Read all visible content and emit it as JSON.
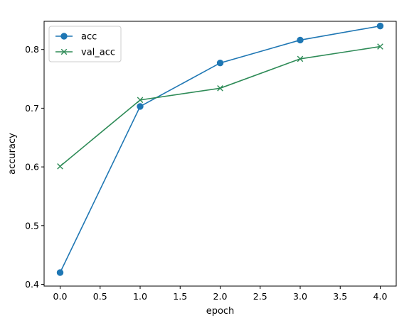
{
  "chart_data": {
    "type": "line",
    "xlabel": "epoch",
    "ylabel": "accuracy",
    "xlim": [
      -0.2,
      4.2
    ],
    "ylim": [
      0.397,
      0.848
    ],
    "xticks": [
      0.0,
      0.5,
      1.0,
      1.5,
      2.0,
      2.5,
      3.0,
      3.5,
      4.0
    ],
    "xtick_labels": [
      "0.0",
      "0.5",
      "1.0",
      "1.5",
      "2.0",
      "2.5",
      "3.0",
      "3.5",
      "4.0"
    ],
    "yticks": [
      0.4,
      0.5,
      0.6,
      0.7,
      0.8
    ],
    "ytick_labels": [
      "0.4",
      "0.5",
      "0.6",
      "0.7",
      "0.8"
    ],
    "grid": false,
    "legend_position": "top-left",
    "x": [
      0,
      1,
      2,
      3,
      4
    ],
    "series": [
      {
        "name": "acc",
        "values": [
          0.42,
          0.703,
          0.777,
          0.816,
          0.84
        ],
        "color": "#1f77b4",
        "marker": "circle"
      },
      {
        "name": "val_acc",
        "values": [
          0.601,
          0.714,
          0.734,
          0.784,
          0.805
        ],
        "color": "#2e8b57",
        "marker": "x"
      }
    ]
  }
}
